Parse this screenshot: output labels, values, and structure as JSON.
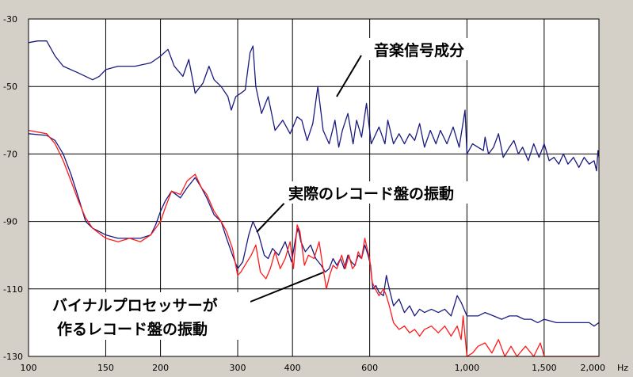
{
  "colors": {
    "background": "#d4d0c8",
    "plot_background": "#ffffff",
    "grid": "#000000",
    "music_signal": "#1a1a80",
    "actual_record": "#1a1a80",
    "vinyl_processor": "#ff1a1a"
  },
  "chart_data": {
    "type": "line",
    "x_scale": "log",
    "x_unit": "Hz",
    "xlim": [
      100,
      2000
    ],
    "ylim": [
      -130,
      -30
    ],
    "x_ticks": [
      {
        "v": 100,
        "label": "100"
      },
      {
        "v": 150,
        "label": "150"
      },
      {
        "v": 200,
        "label": "200"
      },
      {
        "v": 300,
        "label": "300"
      },
      {
        "v": 400,
        "label": "400"
      },
      {
        "v": 600,
        "label": "600"
      },
      {
        "v": 1000,
        "label": "1,000"
      },
      {
        "v": 1500,
        "label": "1,500"
      },
      {
        "v": 2000,
        "label": "2,000"
      }
    ],
    "y_ticks": [
      {
        "v": -30,
        "label": "-30"
      },
      {
        "v": -50,
        "label": "-50"
      },
      {
        "v": -70,
        "label": "-70"
      },
      {
        "v": -90,
        "label": "-90"
      },
      {
        "v": -110,
        "label": "-110"
      },
      {
        "v": -130,
        "label": "-130"
      }
    ],
    "x_unit_label": "Hz",
    "series": [
      {
        "key": "music",
        "color": "#1a1a80",
        "points": [
          [
            100,
            -37
          ],
          [
            105,
            -36.5
          ],
          [
            110,
            -36.5
          ],
          [
            115,
            -41
          ],
          [
            120,
            -44
          ],
          [
            130,
            -46
          ],
          [
            140,
            -48
          ],
          [
            145,
            -47
          ],
          [
            150,
            -45
          ],
          [
            160,
            -44
          ],
          [
            175,
            -44
          ],
          [
            190,
            -43
          ],
          [
            200,
            -41
          ],
          [
            208,
            -39
          ],
          [
            215,
            -44
          ],
          [
            225,
            -47
          ],
          [
            232,
            -42
          ],
          [
            240,
            -52
          ],
          [
            250,
            -49
          ],
          [
            258,
            -44
          ],
          [
            265,
            -48
          ],
          [
            275,
            -50
          ],
          [
            285,
            -53
          ],
          [
            290,
            -57
          ],
          [
            297,
            -53
          ],
          [
            305,
            -52
          ],
          [
            312,
            -51
          ],
          [
            320,
            -40
          ],
          [
            325,
            -38
          ],
          [
            330,
            -50
          ],
          [
            340,
            -58
          ],
          [
            352,
            -53
          ],
          [
            365,
            -63
          ],
          [
            380,
            -60
          ],
          [
            395,
            -64
          ],
          [
            410,
            -59
          ],
          [
            420,
            -60
          ],
          [
            432,
            -66
          ],
          [
            445,
            -61
          ],
          [
            457,
            -50
          ],
          [
            470,
            -63
          ],
          [
            485,
            -67
          ],
          [
            500,
            -60
          ],
          [
            510,
            -68
          ],
          [
            520,
            -63
          ],
          [
            535,
            -58
          ],
          [
            550,
            -67
          ],
          [
            560,
            -60
          ],
          [
            575,
            -65
          ],
          [
            590,
            -55
          ],
          [
            605,
            -67
          ],
          [
            630,
            -62
          ],
          [
            650,
            -67
          ],
          [
            660,
            -60
          ],
          [
            680,
            -67
          ],
          [
            700,
            -64
          ],
          [
            720,
            -67
          ],
          [
            740,
            -64
          ],
          [
            760,
            -66
          ],
          [
            780,
            -61
          ],
          [
            800,
            -68
          ],
          [
            825,
            -63
          ],
          [
            850,
            -67
          ],
          [
            870,
            -63
          ],
          [
            900,
            -67
          ],
          [
            930,
            -62
          ],
          [
            960,
            -68
          ],
          [
            990,
            -57
          ],
          [
            1000,
            -70
          ],
          [
            1030,
            -67
          ],
          [
            1060,
            -68
          ],
          [
            1090,
            -69
          ],
          [
            1100,
            -65
          ],
          [
            1120,
            -70
          ],
          [
            1150,
            -68
          ],
          [
            1180,
            -64
          ],
          [
            1210,
            -71
          ],
          [
            1250,
            -68
          ],
          [
            1280,
            -66
          ],
          [
            1310,
            -70
          ],
          [
            1340,
            -68
          ],
          [
            1380,
            -72
          ],
          [
            1420,
            -67
          ],
          [
            1460,
            -71
          ],
          [
            1500,
            -67
          ],
          [
            1540,
            -72
          ],
          [
            1580,
            -71
          ],
          [
            1620,
            -73
          ],
          [
            1660,
            -70
          ],
          [
            1700,
            -73
          ],
          [
            1750,
            -71
          ],
          [
            1800,
            -74
          ],
          [
            1850,
            -71
          ],
          [
            1900,
            -73
          ],
          [
            1950,
            -72
          ],
          [
            1975,
            -75
          ],
          [
            1990,
            -69
          ],
          [
            2000,
            -71
          ]
        ]
      },
      {
        "key": "actual",
        "color": "#1a1a80",
        "points": [
          [
            100,
            -64
          ],
          [
            110,
            -64.5
          ],
          [
            115,
            -66
          ],
          [
            120,
            -70
          ],
          [
            125,
            -76
          ],
          [
            130,
            -83
          ],
          [
            135,
            -90
          ],
          [
            140,
            -92
          ],
          [
            150,
            -94
          ],
          [
            160,
            -95
          ],
          [
            170,
            -95
          ],
          [
            180,
            -95
          ],
          [
            190,
            -94
          ],
          [
            195,
            -91
          ],
          [
            200,
            -87
          ],
          [
            205,
            -84
          ],
          [
            212,
            -81
          ],
          [
            222,
            -83
          ],
          [
            230,
            -80
          ],
          [
            240,
            -77
          ],
          [
            248,
            -80
          ],
          [
            255,
            -83
          ],
          [
            265,
            -88
          ],
          [
            275,
            -90
          ],
          [
            283,
            -95
          ],
          [
            292,
            -100
          ],
          [
            300,
            -104
          ],
          [
            308,
            -102
          ],
          [
            318,
            -94
          ],
          [
            325,
            -90
          ],
          [
            335,
            -94
          ],
          [
            345,
            -100
          ],
          [
            352,
            -101
          ],
          [
            360,
            -98
          ],
          [
            372,
            -100
          ],
          [
            385,
            -96
          ],
          [
            398,
            -102
          ],
          [
            408,
            -94
          ],
          [
            412,
            -92
          ],
          [
            418,
            -96
          ],
          [
            428,
            -99
          ],
          [
            440,
            -97
          ],
          [
            452,
            -101
          ],
          [
            465,
            -103
          ],
          [
            475,
            -105
          ],
          [
            485,
            -104
          ],
          [
            495,
            -101
          ],
          [
            505,
            -103
          ],
          [
            515,
            -101
          ],
          [
            525,
            -104
          ],
          [
            535,
            -100
          ],
          [
            545,
            -102
          ],
          [
            555,
            -103
          ],
          [
            565,
            -100
          ],
          [
            575,
            -101
          ],
          [
            585,
            -97
          ],
          [
            595,
            -100
          ],
          [
            603,
            -103
          ],
          [
            610,
            -110
          ],
          [
            620,
            -109
          ],
          [
            630,
            -111
          ],
          [
            645,
            -112
          ],
          [
            655,
            -106
          ],
          [
            665,
            -110
          ],
          [
            680,
            -115
          ],
          [
            700,
            -113
          ],
          [
            720,
            -117
          ],
          [
            740,
            -115
          ],
          [
            760,
            -118
          ],
          [
            780,
            -116
          ],
          [
            800,
            -117
          ],
          [
            830,
            -116
          ],
          [
            860,
            -117
          ],
          [
            890,
            -116
          ],
          [
            920,
            -118
          ],
          [
            950,
            -112
          ],
          [
            970,
            -114
          ],
          [
            1000,
            -118
          ],
          [
            1030,
            -118
          ],
          [
            1060,
            -118
          ],
          [
            1100,
            -117
          ],
          [
            1150,
            -118
          ],
          [
            1200,
            -119
          ],
          [
            1250,
            -118
          ],
          [
            1300,
            -118
          ],
          [
            1350,
            -119
          ],
          [
            1400,
            -119
          ],
          [
            1450,
            -120
          ],
          [
            1500,
            -119
          ],
          [
            1600,
            -120
          ],
          [
            1700,
            -120
          ],
          [
            1800,
            -120
          ],
          [
            1900,
            -120
          ],
          [
            1950,
            -121
          ],
          [
            2000,
            -120
          ]
        ]
      },
      {
        "key": "vinyl",
        "color": "#ff1a1a",
        "points": [
          [
            100,
            -63
          ],
          [
            110,
            -64
          ],
          [
            115,
            -67
          ],
          [
            120,
            -72
          ],
          [
            125,
            -78
          ],
          [
            130,
            -84
          ],
          [
            135,
            -89
          ],
          [
            140,
            -92
          ],
          [
            150,
            -95
          ],
          [
            160,
            -96
          ],
          [
            170,
            -95
          ],
          [
            180,
            -96
          ],
          [
            190,
            -94
          ],
          [
            195,
            -92
          ],
          [
            200,
            -90
          ],
          [
            205,
            -86
          ],
          [
            212,
            -81
          ],
          [
            222,
            -82
          ],
          [
            230,
            -78
          ],
          [
            240,
            -76
          ],
          [
            248,
            -80
          ],
          [
            255,
            -82
          ],
          [
            265,
            -87
          ],
          [
            275,
            -90
          ],
          [
            283,
            -93
          ],
          [
            292,
            -98
          ],
          [
            300,
            -106
          ],
          [
            305,
            -105
          ],
          [
            315,
            -102
          ],
          [
            322,
            -100
          ],
          [
            330,
            -97
          ],
          [
            338,
            -105
          ],
          [
            348,
            -107
          ],
          [
            356,
            -104
          ],
          [
            365,
            -99
          ],
          [
            375,
            -104
          ],
          [
            385,
            -101
          ],
          [
            395,
            -96
          ],
          [
            402,
            -104
          ],
          [
            410,
            -91
          ],
          [
            416,
            -93
          ],
          [
            426,
            -103
          ],
          [
            435,
            -100
          ],
          [
            448,
            -101
          ],
          [
            460,
            -96
          ],
          [
            470,
            -104
          ],
          [
            478,
            -110
          ],
          [
            486,
            -106
          ],
          [
            495,
            -103
          ],
          [
            505,
            -104
          ],
          [
            518,
            -100
          ],
          [
            528,
            -104
          ],
          [
            538,
            -100
          ],
          [
            548,
            -104
          ],
          [
            556,
            -103
          ],
          [
            565,
            -99
          ],
          [
            575,
            -101
          ],
          [
            585,
            -95
          ],
          [
            592,
            -98
          ],
          [
            600,
            -101
          ],
          [
            608,
            -108
          ],
          [
            618,
            -110
          ],
          [
            630,
            -112
          ],
          [
            645,
            -110
          ],
          [
            655,
            -112
          ],
          [
            665,
            -115
          ],
          [
            680,
            -120
          ],
          [
            700,
            -122
          ],
          [
            720,
            -121
          ],
          [
            740,
            -123
          ],
          [
            760,
            -122
          ],
          [
            780,
            -124
          ],
          [
            800,
            -122
          ],
          [
            830,
            -121
          ],
          [
            860,
            -123
          ],
          [
            890,
            -121
          ],
          [
            920,
            -124
          ],
          [
            950,
            -121
          ],
          [
            970,
            -125
          ],
          [
            980,
            -118
          ],
          [
            1000,
            -130
          ],
          [
            1030,
            -129
          ],
          [
            1060,
            -127
          ],
          [
            1100,
            -126
          ],
          [
            1140,
            -129
          ],
          [
            1180,
            -125
          ],
          [
            1220,
            -130
          ],
          [
            1260,
            -127
          ],
          [
            1300,
            -130
          ],
          [
            1360,
            -127
          ],
          [
            1420,
            -130
          ],
          [
            1470,
            -126
          ],
          [
            1500,
            -130
          ],
          [
            2000,
            -130
          ]
        ]
      }
    ],
    "annotations": [
      {
        "key": "music",
        "text": "音楽信号成分"
      },
      {
        "key": "actual",
        "text": "実際のレコード盤の振動"
      },
      {
        "key": "vinyl_line1",
        "text": "バイナルプロセッサーが"
      },
      {
        "key": "vinyl_line2",
        "text": "作るレコード盤の振動"
      }
    ]
  }
}
